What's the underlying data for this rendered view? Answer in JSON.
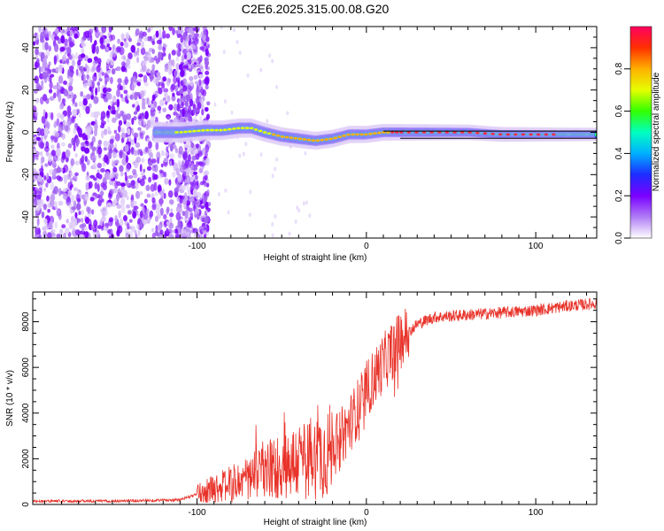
{
  "title": "C2E6.2025.315.00.08.G20",
  "chart_data": [
    {
      "type": "heatmap",
      "xlabel": "Height of straight line (km)",
      "ylabel": "Frequency (Hz)",
      "xlim": [
        -197,
        136
      ],
      "ylim": [
        -50,
        50
      ],
      "x_ticks": [
        -100,
        0,
        100
      ],
      "y_ticks": [
        -40,
        -20,
        0,
        20,
        40
      ],
      "noise_region_x": [
        -197,
        -103
      ],
      "signal_trace": {
        "x": [
          -125,
          -110,
          -95,
          -85,
          -75,
          -68,
          -60,
          -50,
          -40,
          -30,
          -20,
          -10,
          0,
          10,
          20,
          40,
          60,
          80,
          100,
          120,
          136
        ],
        "freq": [
          0,
          0,
          1,
          1,
          2,
          2,
          0,
          -2,
          -3,
          -4,
          -3,
          -1,
          -1,
          0,
          0,
          0,
          0,
          -1,
          -1,
          -1,
          -1
        ]
      },
      "colorbar": {
        "label": "Normalized spectral amplitude",
        "range": [
          0,
          1
        ],
        "ticks": [
          "0.0",
          "0.2",
          "0.4",
          "0.6",
          "0.8"
        ],
        "ticks_num": [
          0.0,
          0.2,
          0.4,
          0.6,
          0.8
        ],
        "colors": [
          "#ffffff",
          "#b07cf5",
          "#7a00ff",
          "#1e2cff",
          "#00b0ff",
          "#00ffc0",
          "#33ff00",
          "#e5ff00",
          "#ffb000",
          "#ff3000",
          "#ff0060"
        ]
      }
    },
    {
      "type": "line",
      "xlabel": "Height of straight line (km)",
      "ylabel": "SNR (10 * v/v)",
      "xlim": [
        -197,
        136
      ],
      "ylim": [
        0,
        9300
      ],
      "x_ticks": [
        -100,
        0,
        100
      ],
      "y_ticks": [
        0,
        2000,
        4000,
        6000,
        8000
      ],
      "color": "#e8332a",
      "trend": {
        "x": [
          -197,
          -150,
          -110,
          -100,
          -90,
          -80,
          -70,
          -60,
          -50,
          -40,
          -30,
          -20,
          -10,
          0,
          10,
          20,
          30,
          40,
          60,
          80,
          100,
          120,
          136
        ],
        "y": [
          150,
          150,
          200,
          450,
          700,
          900,
          1100,
          1400,
          1700,
          1900,
          2100,
          2400,
          3500,
          5000,
          6200,
          7200,
          7900,
          8200,
          8300,
          8400,
          8500,
          8700,
          8800
        ]
      }
    }
  ]
}
